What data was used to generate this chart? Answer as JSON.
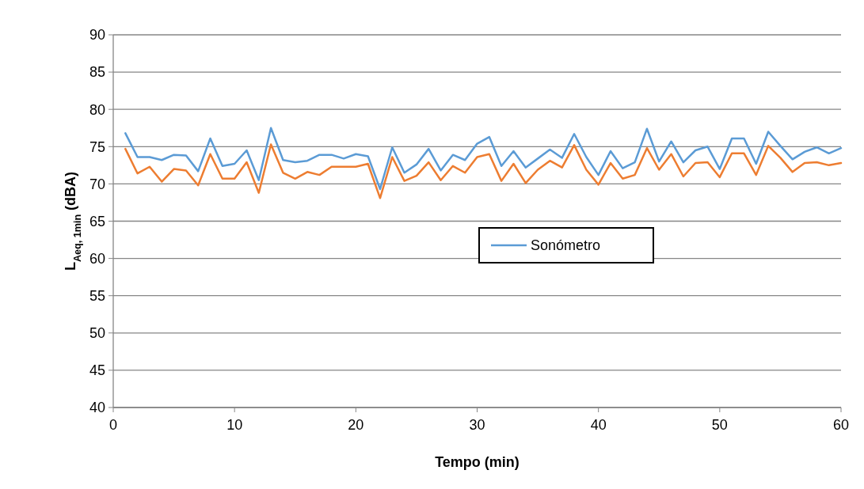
{
  "chart_data": {
    "type": "line",
    "xlabel": "Tempo (min)",
    "ylabel": "L$_{Aeq, 1min}$ (dBA)",
    "x": [
      1,
      2,
      3,
      4,
      5,
      6,
      7,
      8,
      9,
      10,
      11,
      12,
      13,
      14,
      15,
      16,
      17,
      18,
      19,
      20,
      21,
      22,
      23,
      24,
      25,
      26,
      27,
      28,
      29,
      30,
      31,
      32,
      33,
      34,
      35,
      36,
      37,
      38,
      39,
      40,
      41,
      42,
      43,
      44,
      45,
      46,
      47,
      48,
      49,
      50,
      51,
      52,
      53,
      54,
      55,
      56,
      57,
      58,
      59,
      60
    ],
    "series": [
      {
        "name": "Sonómetro",
        "color": "#5b9bd5",
        "values": [
          76.8,
          73.6,
          73.6,
          73.2,
          73.9,
          73.8,
          71.7,
          76.1,
          72.4,
          72.7,
          74.5,
          70.5,
          77.5,
          73.2,
          72.9,
          73.1,
          73.9,
          73.9,
          73.4,
          74.0,
          73.7,
          69.3,
          74.9,
          71.5,
          72.6,
          74.7,
          71.8,
          73.9,
          73.2,
          75.4,
          76.3,
          72.4,
          74.4,
          72.2,
          73.4,
          74.6,
          73.5,
          76.7,
          73.6,
          71.2,
          74.4,
          72.1,
          72.9,
          77.4,
          73.0,
          75.7,
          72.9,
          74.5,
          75.0,
          72.0,
          76.1,
          76.1,
          72.7,
          77.0,
          75.1,
          73.3,
          74.3,
          74.9,
          74.1,
          74.8
        ]
      },
      {
        "color": "#ed7d31",
        "values": [
          74.7,
          71.4,
          72.3,
          70.3,
          72.0,
          71.8,
          69.8,
          74.0,
          70.7,
          70.7,
          72.9,
          68.8,
          75.3,
          71.5,
          70.7,
          71.6,
          71.2,
          72.3,
          72.3,
          72.3,
          72.7,
          68.1,
          73.6,
          70.4,
          71.1,
          72.9,
          70.5,
          72.4,
          71.5,
          73.6,
          74.0,
          70.4,
          72.7,
          70.1,
          71.9,
          73.1,
          72.2,
          75.2,
          71.9,
          69.9,
          72.8,
          70.7,
          71.2,
          74.8,
          71.9,
          74.0,
          71.0,
          72.8,
          72.9,
          70.9,
          74.1,
          74.1,
          71.2,
          75.1,
          73.5,
          71.6,
          72.8,
          72.9,
          72.5,
          72.8
        ]
      }
    ],
    "xlim": [
      0,
      60
    ],
    "xticks": [
      0,
      10,
      20,
      30,
      40,
      50,
      60
    ],
    "ylim": [
      40,
      90
    ],
    "yticks": [
      40,
      45,
      50,
      55,
      60,
      65,
      70,
      75,
      80,
      85,
      90
    ],
    "grid": "y",
    "legend": "right",
    "marker": "none",
    "line_style": "solid"
  }
}
